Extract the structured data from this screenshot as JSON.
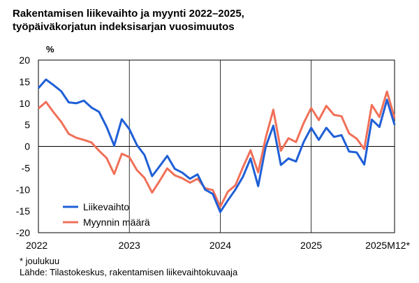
{
  "title_line1": "Rakentamisen liikevaihto ja myynti 2022–2025,",
  "title_line2": "työpäiväkorjatun indeksisarjan vuosimuutos",
  "unit": "%",
  "footnote": "* joulukuu",
  "source": "Lähde: Tilastokeskus, rakentamisen liikevaihtokuvaaja",
  "chart_data": {
    "type": "line",
    "ylim": [
      -20,
      20
    ],
    "yticks": [
      20,
      15,
      10,
      5,
      0,
      -5,
      -10,
      -15,
      -20
    ],
    "grid": "vertical at year boundaries",
    "legend_position": "bottom-left",
    "x_labels": [
      "2022",
      "2023",
      "2024",
      "2025",
      "2025M12*"
    ],
    "x_label_index": [
      0,
      12,
      24,
      36,
      47
    ],
    "series": [
      {
        "name": "Liikevaihto",
        "color": "#1f5fd6",
        "values": [
          13.5,
          15.5,
          14.2,
          12.8,
          10.2,
          10.0,
          10.6,
          9.0,
          8.0,
          4.5,
          0.2,
          6.3,
          4.0,
          0.3,
          -2.0,
          -6.9,
          -4.6,
          -2.2,
          -5.2,
          -6.1,
          -7.5,
          -6.5,
          -10.0,
          -11.0,
          -15.2,
          -12.5,
          -10.0,
          -7.0,
          -2.8,
          -9.2,
          -0.1,
          4.8,
          -4.3,
          -2.8,
          -3.5,
          1.0,
          4.3,
          1.5,
          4.3,
          2.2,
          2.6,
          -1.2,
          -1.4,
          -4.2,
          6.2,
          4.5,
          10.8,
          5.0
        ]
      },
      {
        "name": "Myynnin määrä",
        "color": "#f07058",
        "values": [
          8.8,
          10.3,
          7.9,
          5.7,
          2.9,
          2.0,
          1.5,
          0.9,
          -1.0,
          -2.7,
          -6.4,
          -1.7,
          -2.5,
          -5.5,
          -7.3,
          -10.7,
          -8.0,
          -5.1,
          -6.7,
          -7.4,
          -8.4,
          -7.5,
          -9.7,
          -10.1,
          -14.0,
          -10.5,
          -9.0,
          -4.8,
          -0.9,
          -6.0,
          2.0,
          8.5,
          -1.0,
          1.9,
          1.0,
          5.4,
          8.9,
          6.1,
          9.4,
          7.3,
          7.0,
          3.0,
          1.8,
          -0.6,
          9.6,
          6.8,
          12.7,
          6.6
        ]
      }
    ]
  }
}
